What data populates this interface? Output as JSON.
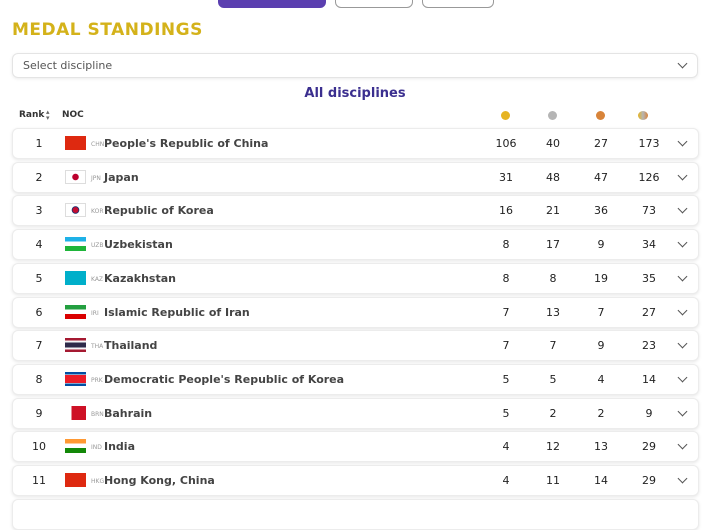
{
  "header": {
    "title": "MEDAL STANDINGS",
    "dropdown": "Select discipline",
    "subtitle": "All disciplines"
  },
  "table": {
    "columns": [
      "Rank",
      "NOC"
    ],
    "rows": [
      {
        "rank": 1,
        "code": "CHN",
        "name": "People's Republic of China",
        "gold": 106,
        "silver": 40,
        "bronze": 27,
        "total": 173
      },
      {
        "rank": 2,
        "code": "JPN",
        "name": "Japan",
        "gold": 31,
        "silver": 48,
        "bronze": 47,
        "total": 126
      },
      {
        "rank": 3,
        "code": "KOR",
        "name": "Republic of Korea",
        "gold": 16,
        "silver": 21,
        "bronze": 36,
        "total": 73
      },
      {
        "rank": 4,
        "code": "UZB",
        "name": "Uzbekistan",
        "gold": 8,
        "silver": 17,
        "bronze": 9,
        "total": 34
      },
      {
        "rank": 5,
        "code": "KAZ",
        "name": "Kazakhstan",
        "gold": 8,
        "silver": 8,
        "bronze": 19,
        "total": 35
      },
      {
        "rank": 6,
        "code": "IRI",
        "name": "Islamic Republic of Iran",
        "gold": 7,
        "silver": 13,
        "bronze": 7,
        "total": 27
      },
      {
        "rank": 7,
        "code": "THA",
        "name": "Thailand",
        "gold": 7,
        "silver": 7,
        "bronze": 9,
        "total": 23
      },
      {
        "rank": 8,
        "code": "PRK",
        "name": "Democratic People's Republic of Korea",
        "gold": 5,
        "silver": 5,
        "bronze": 4,
        "total": 14
      },
      {
        "rank": 9,
        "code": "BRN",
        "name": "Bahrain",
        "gold": 5,
        "silver": 2,
        "bronze": 2,
        "total": 9
      },
      {
        "rank": 10,
        "code": "IND",
        "name": "India",
        "gold": 4,
        "silver": 12,
        "bronze": 13,
        "total": 29
      },
      {
        "rank": 11,
        "code": "HKG",
        "name": "Hong Kong, China",
        "gold": 4,
        "silver": 11,
        "bronze": 14,
        "total": 29
      }
    ]
  }
}
